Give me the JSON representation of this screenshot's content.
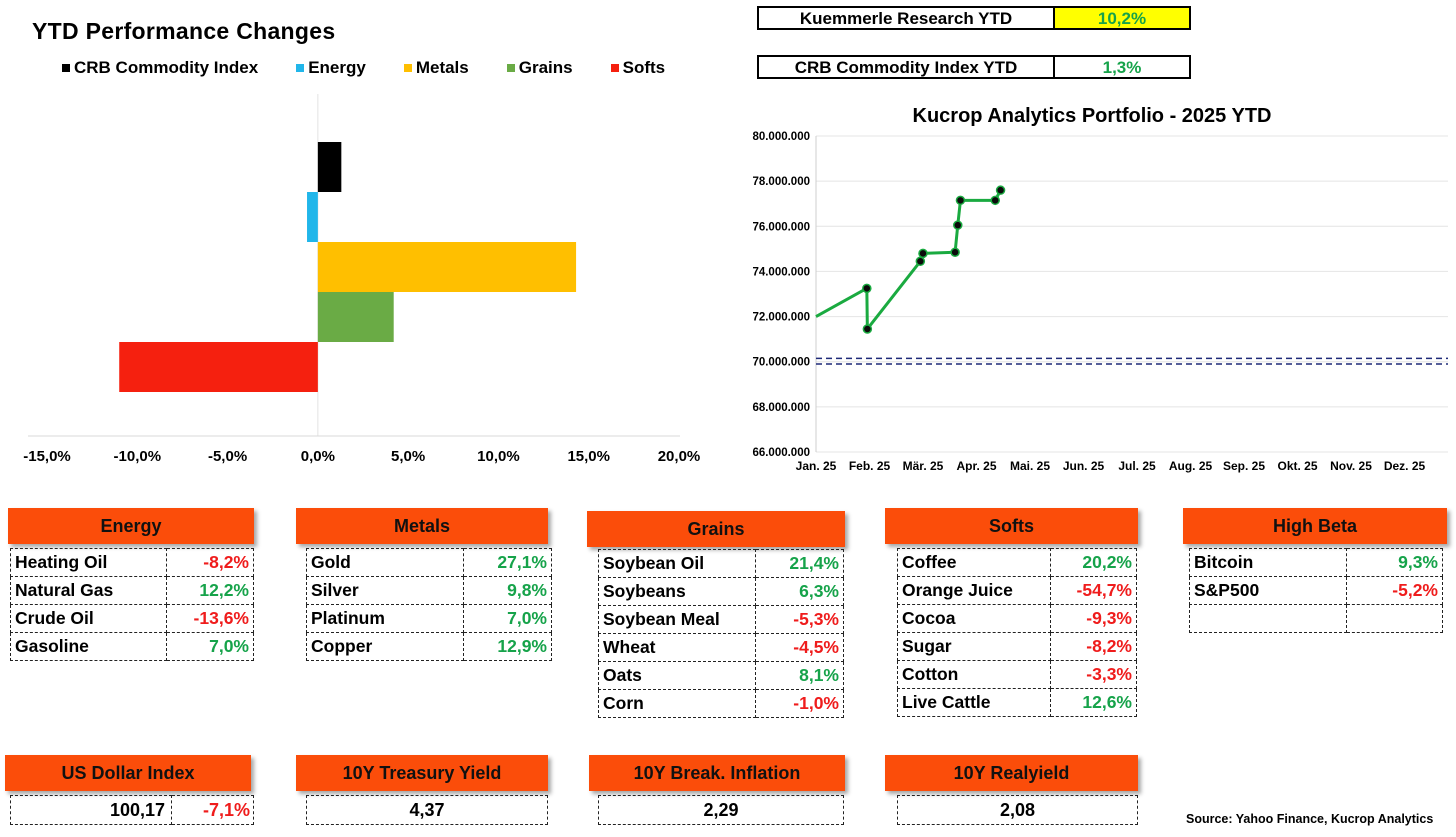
{
  "ytd_chart": {
    "title": "YTD Performance Changes",
    "legend": [
      {
        "label": "CRB Commodity Index",
        "color": "#000000"
      },
      {
        "label": "Energy",
        "color": "#21b6ea"
      },
      {
        "label": "Metals",
        "color": "#ffbf00"
      },
      {
        "label": "Grains",
        "color": "#6aab45"
      },
      {
        "label": "Softs",
        "color": "#f5200f"
      }
    ],
    "x_ticks": [
      "-15,0%",
      "-10,0%",
      "-5,0%",
      "0,0%",
      "5,0%",
      "10,0%",
      "15,0%",
      "20,0%"
    ]
  },
  "kpis": [
    {
      "label": "Kuemmerle Research YTD",
      "value": "10,2%",
      "highlight": "#ffff00"
    },
    {
      "label": "CRB Commodity Index YTD",
      "value": "1,3%",
      "highlight": "#ffffff"
    }
  ],
  "portfolio_chart": {
    "title": "Kucrop Analytics Portfolio - 2025 YTD",
    "y_ticks": [
      "80.000.000",
      "78.000.000",
      "76.000.000",
      "74.000.000",
      "72.000.000",
      "70.000.000",
      "68.000.000",
      "66.000.000"
    ],
    "x_ticks": [
      "Jan. 25",
      "Feb. 25",
      "Mär. 25",
      "Apr. 25",
      "Mai. 25",
      "Jun. 25",
      "Jul. 25",
      "Aug. 25",
      "Sep. 25",
      "Okt. 25",
      "Nov. 25",
      "Dez. 25"
    ]
  },
  "chart_data": [
    {
      "type": "bar",
      "orientation": "horizontal",
      "title": "YTD Performance Changes",
      "categories": [
        "CRB Commodity Index",
        "Energy",
        "Metals",
        "Grains",
        "Softs"
      ],
      "values": [
        1.3,
        -0.6,
        14.3,
        4.2,
        -11.0
      ],
      "colors": [
        "#000000",
        "#21b6ea",
        "#ffbf00",
        "#6aab45",
        "#f5200f"
      ],
      "xlim": [
        -15,
        20
      ],
      "unit": "%"
    },
    {
      "type": "line",
      "title": "Kucrop Analytics Portfolio - 2025 YTD",
      "x_month_index": [
        0.0,
        0.95,
        0.96,
        1.95,
        2.0,
        2.6,
        2.65,
        2.7,
        3.35,
        3.45
      ],
      "y": [
        72000000,
        73250000,
        71450000,
        74450000,
        74800000,
        74850000,
        76050000,
        77150000,
        77150000,
        77600000
      ],
      "ylim": [
        66000000,
        80000000
      ],
      "reference_lines": [
        70150000,
        69900000
      ],
      "color": "#1aaa40"
    }
  ],
  "tables": [
    {
      "title": "Energy",
      "rows": [
        {
          "name": "Heating Oil",
          "value": "-8,2%",
          "sign": "neg"
        },
        {
          "name": "Natural Gas",
          "value": "12,2%",
          "sign": "pos"
        },
        {
          "name": "Crude Oil",
          "value": "-13,6%",
          "sign": "neg"
        },
        {
          "name": "Gasoline",
          "value": "7,0%",
          "sign": "pos"
        }
      ]
    },
    {
      "title": "Metals",
      "rows": [
        {
          "name": "Gold",
          "value": "27,1%",
          "sign": "pos"
        },
        {
          "name": "Silver",
          "value": "9,8%",
          "sign": "pos"
        },
        {
          "name": "Platinum",
          "value": "7,0%",
          "sign": "pos"
        },
        {
          "name": "Copper",
          "value": "12,9%",
          "sign": "pos"
        }
      ]
    },
    {
      "title": "Grains",
      "rows": [
        {
          "name": "Soybean Oil",
          "value": "21,4%",
          "sign": "pos"
        },
        {
          "name": "Soybeans",
          "value": "6,3%",
          "sign": "pos"
        },
        {
          "name": "Soybean Meal",
          "value": "-5,3%",
          "sign": "neg"
        },
        {
          "name": "Wheat",
          "value": "-4,5%",
          "sign": "neg"
        },
        {
          "name": "Oats",
          "value": "8,1%",
          "sign": "pos"
        },
        {
          "name": "Corn",
          "value": "-1,0%",
          "sign": "neg"
        }
      ]
    },
    {
      "title": "Softs",
      "rows": [
        {
          "name": "Coffee",
          "value": "20,2%",
          "sign": "pos"
        },
        {
          "name": "Orange Juice",
          "value": "-54,7%",
          "sign": "neg"
        },
        {
          "name": "Cocoa",
          "value": "-9,3%",
          "sign": "neg"
        },
        {
          "name": "Sugar",
          "value": "-8,2%",
          "sign": "neg"
        },
        {
          "name": "Cotton",
          "value": "-3,3%",
          "sign": "neg"
        },
        {
          "name": "Live Cattle",
          "value": "12,6%",
          "sign": "pos"
        }
      ]
    },
    {
      "title": "High Beta",
      "rows": [
        {
          "name": "Bitcoin",
          "value": "9,3%",
          "sign": "pos"
        },
        {
          "name": "S&P500",
          "value": "-5,2%",
          "sign": "neg"
        },
        {
          "name": "",
          "value": "",
          "sign": ""
        }
      ]
    }
  ],
  "indicators": [
    {
      "title": "US Dollar Index",
      "value": "100,17",
      "change": "-7,1%"
    },
    {
      "title": "10Y Treasury Yield",
      "value": "4,37"
    },
    {
      "title": "10Y Break. Inflation",
      "value": "2,29"
    },
    {
      "title": "10Y Realyield",
      "value": "2,08"
    }
  ],
  "source": "Source: Yahoo Finance, Kucrop Analytics"
}
